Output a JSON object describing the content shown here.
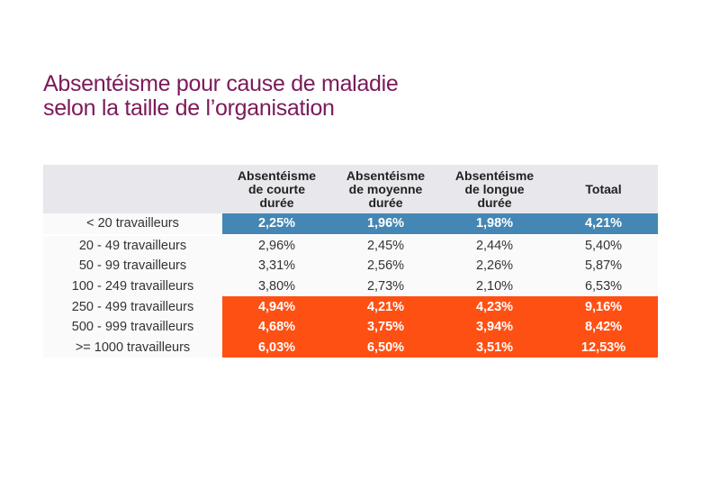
{
  "title": {
    "line1": "Absentéisme pour cause de maladie",
    "line2": "selon la taille de l’organisation"
  },
  "colors": {
    "title": "#7b1a5a",
    "highlight_small": "#4487b5",
    "highlight_large": "#ff5014",
    "header_bg": "#e7e7ec"
  },
  "table": {
    "headers": [
      {
        "l1": "",
        "l2": "",
        "l3": ""
      },
      {
        "l1": "Absentéisme",
        "l2": "de courte",
        "l3": "durée"
      },
      {
        "l1": "Absentéisme",
        "l2": "de moyenne",
        "l3": "durée"
      },
      {
        "l1": "Absentéisme",
        "l2": "de longue",
        "l3": "durée"
      },
      {
        "l1": "",
        "l2": "Totaal",
        "l3": ""
      }
    ],
    "rows": [
      {
        "label": "< 20 travailleurs",
        "style": "blue",
        "values": [
          "2,25%",
          "1,96%",
          "1,98%",
          "4,21%"
        ]
      },
      {
        "label": "20 - 49 travailleurs",
        "style": "plain",
        "values": [
          "2,96%",
          "2,45%",
          "2,44%",
          "5,40%"
        ]
      },
      {
        "label": "50 - 99 travailleurs",
        "style": "plain",
        "values": [
          "3,31%",
          "2,56%",
          "2,26%",
          "5,87%"
        ]
      },
      {
        "label": "100 - 249 travailleurs",
        "style": "plain",
        "values": [
          "3,80%",
          "2,73%",
          "2,10%",
          "6,53%"
        ]
      },
      {
        "label": "250 - 499 travailleurs",
        "style": "orange",
        "values": [
          "4,94%",
          "4,21%",
          "4,23%",
          "9,16%"
        ]
      },
      {
        "label": "500 - 999 travailleurs",
        "style": "orange",
        "values": [
          "4,68%",
          "3,75%",
          "3,94%",
          "8,42%"
        ]
      },
      {
        "label": ">= 1000 travailleurs",
        "style": "orange",
        "values": [
          "6,03%",
          "6,50%",
          "3,51%",
          "12,53%"
        ]
      }
    ]
  }
}
